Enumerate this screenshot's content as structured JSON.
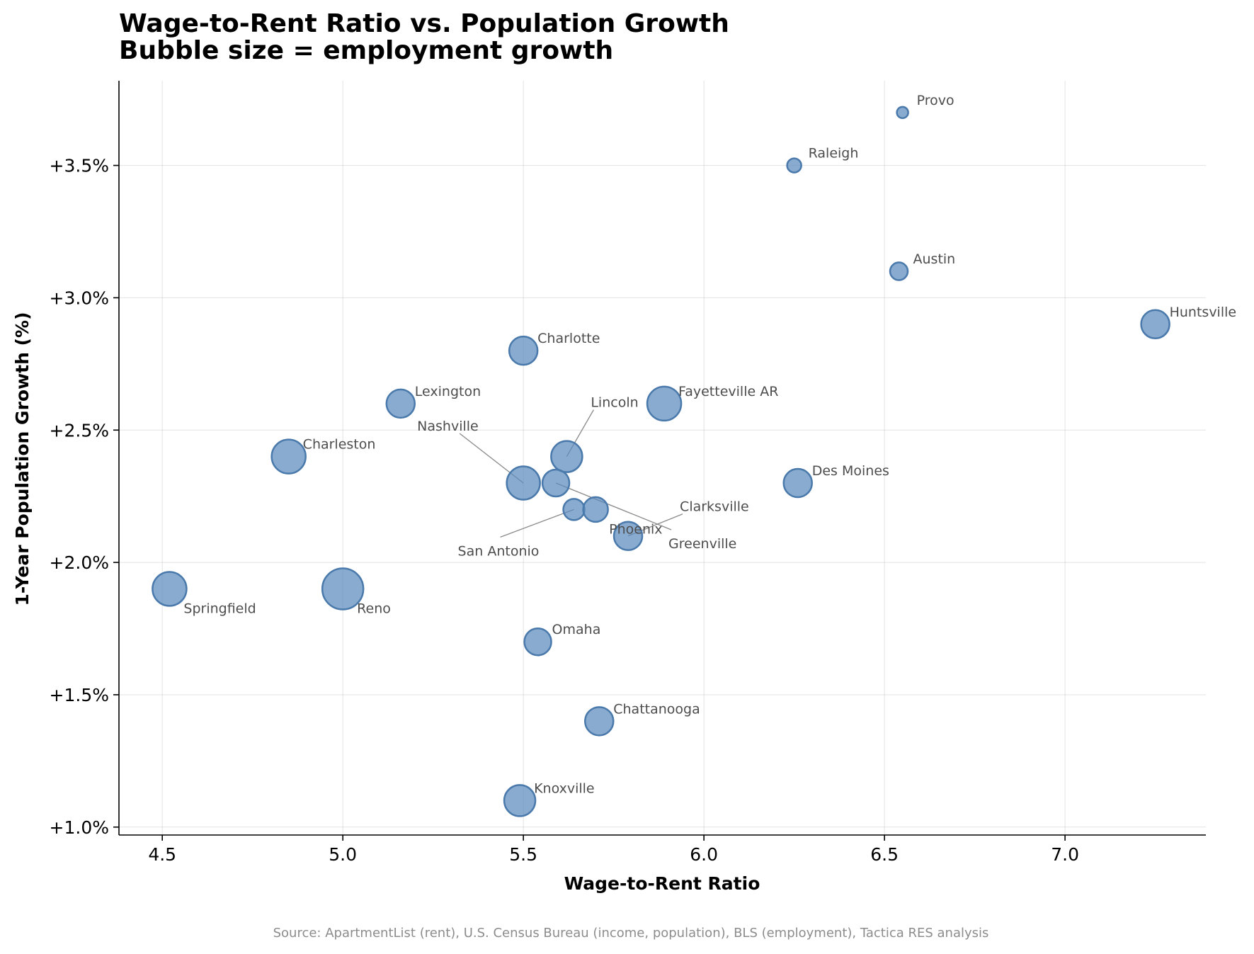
{
  "chart_data": {
    "type": "scatter",
    "title": "Wage-to-Rent Ratio vs. Population Growth",
    "subtitle": "Bubble size = employment growth",
    "xlabel": "Wage-to-Rent Ratio",
    "ylabel": "1-Year Population Growth (%)",
    "xlim": [
      4.38,
      7.39
    ],
    "ylim": [
      0.97,
      3.82
    ],
    "x_ticks": [
      4.5,
      5.0,
      5.5,
      6.0,
      6.5,
      7.0
    ],
    "x_tick_labels": [
      "4.5",
      "5.0",
      "5.5",
      "6.0",
      "6.5",
      "7.0"
    ],
    "y_ticks": [
      1.0,
      1.5,
      2.0,
      2.5,
      3.0,
      3.5
    ],
    "y_tick_labels": [
      "+1.0%",
      "+1.5%",
      "+2.0%",
      "+2.5%",
      "+3.0%",
      "+3.5%"
    ],
    "grid": true,
    "bubble_color": "#5b8bbd",
    "source": "Source: ApartmentList (rent), U.S. Census Bureau (income, population), BLS (employment), Tactica RES analysis",
    "points": [
      {
        "label": "Provo",
        "x": 6.55,
        "y": 3.7,
        "r": 8,
        "label_dx": 20,
        "label_dy": -17
      },
      {
        "label": "Raleigh",
        "x": 6.25,
        "y": 3.5,
        "r": 10,
        "label_dx": 20,
        "label_dy": -17
      },
      {
        "label": "Austin",
        "x": 6.54,
        "y": 3.1,
        "r": 12.5,
        "label_dx": 20,
        "label_dy": -17
      },
      {
        "label": "Huntsville",
        "x": 7.25,
        "y": 2.9,
        "r": 20,
        "label_dx": 20,
        "label_dy": -17
      },
      {
        "label": "Charlotte",
        "x": 5.5,
        "y": 2.8,
        "r": 20,
        "label_dx": 20,
        "label_dy": -17
      },
      {
        "label": "Lexington",
        "x": 5.16,
        "y": 2.6,
        "r": 20,
        "label_dx": 20,
        "label_dy": -17
      },
      {
        "label": "Fayetteville AR",
        "x": 5.89,
        "y": 2.6,
        "r": 24,
        "label_dx": 20,
        "label_dy": -17
      },
      {
        "label": "Charleston",
        "x": 4.85,
        "y": 2.4,
        "r": 24,
        "label_dx": 20,
        "label_dy": -17
      },
      {
        "label": "Des Moines",
        "x": 6.26,
        "y": 2.3,
        "r": 20,
        "label_dx": 20,
        "label_dy": -17
      },
      {
        "label": "Lincoln",
        "x": 5.62,
        "y": 2.4,
        "r": 22,
        "label_dx": 34,
        "label_dy": -76,
        "leader": true
      },
      {
        "label": "Nashville",
        "x": 5.5,
        "y": 2.3,
        "r": 23.5,
        "label_dx": -150,
        "label_dy": -80,
        "leader": true
      },
      {
        "label": "Greenville",
        "x": 5.59,
        "y": 2.3,
        "r": 19,
        "label_dx": 159,
        "label_dy": 86,
        "leader": true
      },
      {
        "label": "San Antonio",
        "x": 5.64,
        "y": 2.2,
        "r": 15,
        "label_dx": -164,
        "label_dy": 59,
        "leader": true
      },
      {
        "label": "Phoenix",
        "x": 5.7,
        "y": 2.2,
        "r": 17.5,
        "label_dx": 19,
        "label_dy": 28
      },
      {
        "label": "Clarksville",
        "x": 5.79,
        "y": 2.1,
        "r": 20,
        "label_dx": 73,
        "label_dy": -41,
        "leader": true
      },
      {
        "label": "Springfield",
        "x": 4.52,
        "y": 1.9,
        "r": 24,
        "label_dx": 20,
        "label_dy": 28
      },
      {
        "label": "Reno",
        "x": 5.0,
        "y": 1.9,
        "r": 29,
        "label_dx": 20,
        "label_dy": 28
      },
      {
        "label": "Omaha",
        "x": 5.54,
        "y": 1.7,
        "r": 19,
        "label_dx": 20,
        "label_dy": -17
      },
      {
        "label": "Chattanooga",
        "x": 5.71,
        "y": 1.4,
        "r": 20,
        "label_dx": 20,
        "label_dy": -17
      },
      {
        "label": "Knoxville",
        "x": 5.49,
        "y": 1.1,
        "r": 22,
        "label_dx": 20,
        "label_dy": -17
      }
    ]
  }
}
